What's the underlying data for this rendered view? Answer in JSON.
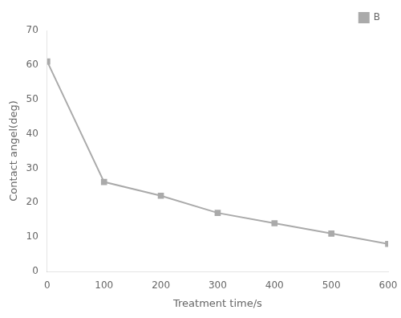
{
  "chart_data": {
    "type": "line",
    "xlabel": "Treatment time/s",
    "ylabel": "Contact angel(deg)",
    "x": [
      0,
      100,
      200,
      300,
      400,
      500,
      600
    ],
    "series": [
      {
        "name": "B",
        "color": "#aaaaaa",
        "values": [
          61,
          26,
          22,
          17,
          14,
          11,
          8
        ]
      }
    ],
    "xlim": [
      0,
      600
    ],
    "ylim": [
      0,
      70
    ],
    "xticks": [
      0,
      100,
      200,
      300,
      400,
      500,
      600
    ],
    "yticks": [
      0,
      10,
      20,
      30,
      40,
      50,
      60,
      70
    ],
    "legend": "upper right",
    "grid": false,
    "marker": "square"
  }
}
